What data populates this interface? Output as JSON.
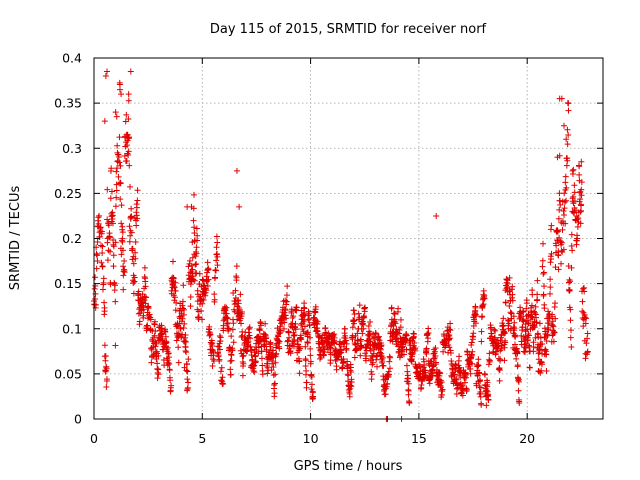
{
  "chart_data": {
    "type": "scatter",
    "title": "Day 115 of 2015, SRMTID for receiver norf",
    "xlabel": "GPS time / hours",
    "ylabel": "SRMTID / TECUs",
    "xlim": [
      0,
      23.5
    ],
    "ylim": [
      0,
      0.4
    ],
    "xticks": [
      0,
      5,
      10,
      15,
      20
    ],
    "xtick_labels": [
      "0",
      "5",
      "10",
      "15",
      "20"
    ],
    "yticks": [
      0,
      0.05,
      0.1,
      0.15,
      0.2,
      0.25,
      0.3,
      0.35,
      0.4
    ],
    "ytick_labels": [
      "0",
      "0.05",
      "0.1",
      "0.15",
      "0.2",
      "0.25",
      "0.3",
      "0.35",
      "0.4"
    ],
    "grid": true,
    "marker": "plus",
    "color": "#e00000",
    "envelope": {
      "hours": [
        0,
        0.5,
        1,
        1.5,
        2,
        2.5,
        3,
        3.5,
        4,
        4.5,
        5,
        5.5,
        6,
        6.5,
        7,
        7.5,
        8,
        8.5,
        9,
        9.5,
        10,
        10.5,
        11,
        11.5,
        12,
        12.5,
        13,
        13.5,
        14,
        14.5,
        15,
        15.5,
        16,
        16.5,
        17,
        17.5,
        18,
        18.5,
        19,
        19.5,
        20,
        20.5,
        21,
        21.5,
        22,
        22.5,
        22.8
      ],
      "median": [
        0.16,
        0.22,
        0.24,
        0.27,
        0.15,
        0.11,
        0.1,
        0.12,
        0.14,
        0.15,
        0.11,
        0.1,
        0.07,
        0.12,
        0.09,
        0.09,
        0.08,
        0.08,
        0.12,
        0.09,
        0.08,
        0.08,
        0.07,
        0.08,
        0.08,
        0.08,
        0.07,
        0.07,
        0.08,
        0.07,
        0.07,
        0.06,
        0.07,
        0.06,
        0.06,
        0.06,
        0.07,
        0.08,
        0.1,
        0.1,
        0.11,
        0.12,
        0.15,
        0.17,
        0.18,
        0.17,
        0.16
      ],
      "spread": [
        0.04,
        0.07,
        0.07,
        0.07,
        0.05,
        0.03,
        0.03,
        0.04,
        0.05,
        0.05,
        0.03,
        0.03,
        0.02,
        0.05,
        0.025,
        0.025,
        0.025,
        0.025,
        0.04,
        0.03,
        0.025,
        0.025,
        0.02,
        0.025,
        0.025,
        0.025,
        0.025,
        0.025,
        0.03,
        0.02,
        0.025,
        0.02,
        0.025,
        0.02,
        0.02,
        0.02,
        0.025,
        0.025,
        0.03,
        0.03,
        0.035,
        0.045,
        0.05,
        0.06,
        0.06,
        0.06,
        0.05
      ]
    },
    "notable_points": [
      {
        "x": 0.6,
        "y": 0.385
      },
      {
        "x": 0.55,
        "y": 0.38
      },
      {
        "x": 1.2,
        "y": 0.365
      },
      {
        "x": 1.25,
        "y": 0.36
      },
      {
        "x": 1.7,
        "y": 0.385
      },
      {
        "x": 1.6,
        "y": 0.36
      },
      {
        "x": 1.0,
        "y": 0.34
      },
      {
        "x": 1.05,
        "y": 0.335
      },
      {
        "x": 0.5,
        "y": 0.33
      },
      {
        "x": 6.6,
        "y": 0.275
      },
      {
        "x": 6.7,
        "y": 0.235
      },
      {
        "x": 21.5,
        "y": 0.355
      },
      {
        "x": 21.6,
        "y": 0.355
      },
      {
        "x": 21.7,
        "y": 0.325
      },
      {
        "x": 21.8,
        "y": 0.31
      },
      {
        "x": 21.4,
        "y": 0.29
      },
      {
        "x": 22.5,
        "y": 0.285
      },
      {
        "x": 22.4,
        "y": 0.28
      },
      {
        "x": 22.1,
        "y": 0.275
      },
      {
        "x": 15.8,
        "y": 0.225
      },
      {
        "x": 4.5,
        "y": 0.235
      },
      {
        "x": 4.3,
        "y": 0.235
      },
      {
        "x": 13.5,
        "y": 0.0
      },
      {
        "x": 13.55,
        "y": 0.0
      },
      {
        "x": 14.2,
        "y": 0.0
      }
    ],
    "sample_count": 2300
  }
}
